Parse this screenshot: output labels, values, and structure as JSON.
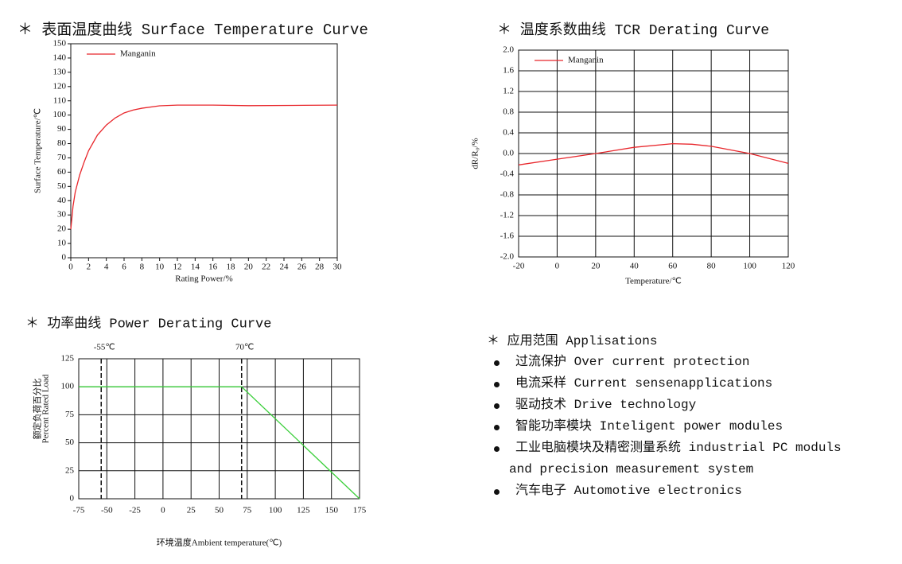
{
  "chart_data": [
    {
      "type": "line",
      "title": "＊ 表面温度曲线 Surface Temperature Curve",
      "xlabel": "Rating Power/%",
      "ylabel": "Surface Temperature/℃",
      "x": [
        0,
        0.25,
        0.5,
        1,
        1.5,
        2,
        3,
        4,
        5,
        6,
        7,
        8,
        10,
        12,
        14,
        16,
        20,
        25,
        30
      ],
      "series": [
        {
          "name": "Manganin",
          "color": "#e8262b",
          "values": [
            20,
            36,
            46,
            58,
            67,
            75,
            86,
            93,
            98,
            101.5,
            103.5,
            104.8,
            106.5,
            107,
            107,
            107,
            106.6,
            106.8,
            107
          ]
        }
      ],
      "xlim": [
        0,
        30
      ],
      "xticks": [
        0,
        2,
        4,
        6,
        8,
        10,
        12,
        14,
        16,
        18,
        20,
        22,
        24,
        26,
        28,
        30
      ],
      "ylim": [
        0,
        150
      ],
      "yticks": [
        0,
        10,
        20,
        30,
        40,
        50,
        60,
        70,
        80,
        90,
        100,
        110,
        120,
        130,
        140,
        150
      ],
      "grid": false
    },
    {
      "type": "line",
      "title": "＊ 温度系数曲线 TCR Derating Curve",
      "xlabel": "Temperature/℃",
      "ylabel": "dR/R₀/%",
      "x": [
        -20,
        0,
        20,
        40,
        60,
        70,
        80,
        100,
        120
      ],
      "series": [
        {
          "name": "Manganin",
          "color": "#e8262b",
          "values": [
            -0.22,
            -0.11,
            0.0,
            0.12,
            0.19,
            0.18,
            0.14,
            0.0,
            -0.19
          ]
        }
      ],
      "xlim": [
        -20,
        120
      ],
      "xticks": [
        -20,
        0,
        20,
        40,
        60,
        80,
        100,
        120
      ],
      "ylim": [
        -2,
        2
      ],
      "yticks": [
        {
          "value": -2,
          "label": "-2.0"
        },
        -1.6,
        -1.2,
        -0.8,
        -0.4,
        {
          "value": 0,
          "label": "0.0"
        },
        0.4,
        0.8,
        1.2,
        1.6,
        {
          "value": 2,
          "label": "2.0"
        }
      ],
      "grid": true
    },
    {
      "type": "line",
      "title": "＊ 功率曲线 Power Derating Curve",
      "xlabel": "环境温度Ambient temperature(℃)",
      "ylabel": [
        "额定负荷百分比",
        "Percent Rated Load"
      ],
      "x": [
        -75,
        70,
        175
      ],
      "series": [
        {
          "color": "#3ccf3c",
          "values": [
            100,
            100,
            0
          ]
        }
      ],
      "reference_lines": [
        {
          "value": -55,
          "label": "-55℃"
        },
        {
          "value": 70,
          "label": "70℃"
        }
      ],
      "xlim": [
        -75,
        175
      ],
      "xticks": [
        -75,
        -50,
        -25,
        0,
        25,
        50,
        75,
        100,
        125,
        150,
        175
      ],
      "ylim": [
        0,
        125
      ],
      "yticks": [
        0,
        25,
        50,
        75,
        100,
        125
      ],
      "grid": true
    }
  ],
  "applications": {
    "title": "＊ 应用范围 Applisations",
    "items": [
      [
        "过流保护 Over current protection"
      ],
      [
        "电流采样 Current sensenapplications"
      ],
      [
        "驱动技术 Drive technology"
      ],
      [
        "智能功率模块 Inteligent power modules"
      ],
      [
        "工业电脑模块及精密测量系统 industrial PC moduls",
        "and precision measurement system"
      ],
      [
        "汽车电子 Automotive electronics"
      ]
    ]
  }
}
